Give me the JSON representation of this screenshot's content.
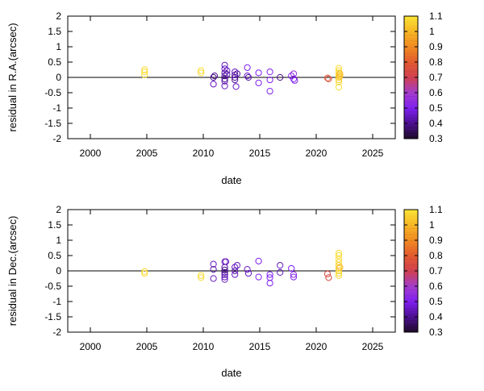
{
  "colorbar": {
    "min": 0.3,
    "max": 1.1,
    "ticks": [
      "0.3",
      "0.4",
      "0.5",
      "0.6",
      "0.7",
      "0.8",
      "0.9",
      "1",
      "1.1"
    ],
    "stops": [
      {
        "v": 0.3,
        "color": "#1e0a28"
      },
      {
        "v": 0.4,
        "color": "#4b0f8f"
      },
      {
        "v": 0.5,
        "color": "#7f1ff0"
      },
      {
        "v": 0.6,
        "color": "#a43ccc"
      },
      {
        "v": 0.7,
        "color": "#d04050"
      },
      {
        "v": 0.8,
        "color": "#e25a30"
      },
      {
        "v": 0.9,
        "color": "#f08a20"
      },
      {
        "v": 1.0,
        "color": "#f7b526"
      },
      {
        "v": 1.1,
        "color": "#fbe434"
      }
    ]
  },
  "chart_data": [
    {
      "type": "scatter",
      "title": "",
      "xlabel": "date",
      "ylabel": "residual in R.A.(arcsec)",
      "xlim": [
        1998,
        2027
      ],
      "ylim": [
        -2,
        2
      ],
      "x_ticks": [
        "2000",
        "2005",
        "2010",
        "2015",
        "2020",
        "2025"
      ],
      "y_ticks": [
        "2",
        "1.5",
        "1",
        "0.5",
        "0",
        "-0.5",
        "-1",
        "-1.5",
        "-2"
      ],
      "zero_line": true,
      "points": [
        {
          "x": 2004.8,
          "y": 0.25,
          "c": 1.08
        },
        {
          "x": 2004.8,
          "y": 0.18,
          "c": 1.08
        },
        {
          "x": 2004.8,
          "y": 0.08,
          "c": 1.08
        },
        {
          "x": 2009.8,
          "y": 0.22,
          "c": 1.08
        },
        {
          "x": 2009.8,
          "y": 0.15,
          "c": 1.08
        },
        {
          "x": 2010.9,
          "y": 0.0,
          "c": 0.4
        },
        {
          "x": 2010.9,
          "y": -0.22,
          "c": 0.45
        },
        {
          "x": 2011.0,
          "y": 0.05,
          "c": 0.4
        },
        {
          "x": 2011.9,
          "y": 0.4,
          "c": 0.45
        },
        {
          "x": 2011.9,
          "y": 0.28,
          "c": 0.45
        },
        {
          "x": 2011.9,
          "y": 0.15,
          "c": 0.42
        },
        {
          "x": 2011.9,
          "y": 0.05,
          "c": 0.4
        },
        {
          "x": 2011.9,
          "y": -0.05,
          "c": 0.4
        },
        {
          "x": 2011.9,
          "y": -0.12,
          "c": 0.42
        },
        {
          "x": 2011.9,
          "y": -0.28,
          "c": 0.45
        },
        {
          "x": 2012.1,
          "y": 0.22,
          "c": 0.45
        },
        {
          "x": 2012.1,
          "y": 0.1,
          "c": 0.42
        },
        {
          "x": 2012.8,
          "y": 0.18,
          "c": 0.45
        },
        {
          "x": 2012.8,
          "y": 0.08,
          "c": 0.42
        },
        {
          "x": 2012.8,
          "y": 0.0,
          "c": 0.4
        },
        {
          "x": 2012.8,
          "y": -0.08,
          "c": 0.42
        },
        {
          "x": 2012.9,
          "y": -0.3,
          "c": 0.45
        },
        {
          "x": 2013.0,
          "y": 0.12,
          "c": 0.42
        },
        {
          "x": 2013.9,
          "y": 0.32,
          "c": 0.5
        },
        {
          "x": 2013.9,
          "y": 0.05,
          "c": 0.45
        },
        {
          "x": 2014.0,
          "y": 0.0,
          "c": 0.42
        },
        {
          "x": 2014.9,
          "y": 0.15,
          "c": 0.5
        },
        {
          "x": 2014.9,
          "y": -0.18,
          "c": 0.5
        },
        {
          "x": 2015.9,
          "y": 0.18,
          "c": 0.5
        },
        {
          "x": 2015.9,
          "y": -0.08,
          "c": 0.5
        },
        {
          "x": 2015.9,
          "y": -0.45,
          "c": 0.5
        },
        {
          "x": 2016.8,
          "y": 0.0,
          "c": 0.4
        },
        {
          "x": 2017.8,
          "y": 0.05,
          "c": 0.5
        },
        {
          "x": 2018.0,
          "y": 0.12,
          "c": 0.55
        },
        {
          "x": 2018.0,
          "y": -0.05,
          "c": 0.5
        },
        {
          "x": 2018.1,
          "y": -0.1,
          "c": 0.5
        },
        {
          "x": 2021.0,
          "y": -0.02,
          "c": 0.8
        },
        {
          "x": 2021.1,
          "y": -0.05,
          "c": 0.75
        },
        {
          "x": 2022.0,
          "y": 0.3,
          "c": 1.08
        },
        {
          "x": 2022.0,
          "y": 0.22,
          "c": 1.08
        },
        {
          "x": 2022.0,
          "y": 0.15,
          "c": 1.08
        },
        {
          "x": 2022.0,
          "y": 0.08,
          "c": 1.08
        },
        {
          "x": 2022.0,
          "y": 0.0,
          "c": 1.05
        },
        {
          "x": 2022.0,
          "y": -0.08,
          "c": 1.05
        },
        {
          "x": 2022.0,
          "y": -0.15,
          "c": 1.08
        },
        {
          "x": 2022.0,
          "y": -0.32,
          "c": 1.08
        },
        {
          "x": 2022.1,
          "y": 0.12,
          "c": 1.0
        },
        {
          "x": 2022.1,
          "y": 0.04,
          "c": 1.0
        }
      ]
    },
    {
      "type": "scatter",
      "title": "",
      "xlabel": "date",
      "ylabel": "residual in Dec.(arcsec)",
      "xlim": [
        1998,
        2027
      ],
      "ylim": [
        -2,
        2
      ],
      "x_ticks": [
        "2000",
        "2005",
        "2010",
        "2015",
        "2020",
        "2025"
      ],
      "y_ticks": [
        "2",
        "1.5",
        "1",
        "0.5",
        "0",
        "-0.5",
        "-1",
        "-1.5",
        "-2"
      ],
      "zero_line": true,
      "points": [
        {
          "x": 2004.8,
          "y": -0.02,
          "c": 1.08
        },
        {
          "x": 2004.8,
          "y": -0.08,
          "c": 1.08
        },
        {
          "x": 2009.8,
          "y": -0.15,
          "c": 1.08
        },
        {
          "x": 2009.8,
          "y": -0.22,
          "c": 1.08
        },
        {
          "x": 2010.9,
          "y": 0.22,
          "c": 0.45
        },
        {
          "x": 2010.9,
          "y": 0.05,
          "c": 0.42
        },
        {
          "x": 2010.9,
          "y": -0.25,
          "c": 0.45
        },
        {
          "x": 2011.9,
          "y": 0.3,
          "c": 0.45
        },
        {
          "x": 2011.9,
          "y": 0.12,
          "c": 0.42
        },
        {
          "x": 2011.9,
          "y": 0.03,
          "c": 0.4
        },
        {
          "x": 2011.9,
          "y": -0.05,
          "c": 0.4
        },
        {
          "x": 2011.9,
          "y": -0.12,
          "c": 0.42
        },
        {
          "x": 2011.9,
          "y": -0.2,
          "c": 0.45
        },
        {
          "x": 2011.9,
          "y": -0.28,
          "c": 0.45
        },
        {
          "x": 2012.0,
          "y": 0.3,
          "c": 0.45
        },
        {
          "x": 2012.8,
          "y": 0.12,
          "c": 0.45
        },
        {
          "x": 2012.8,
          "y": 0.0,
          "c": 0.42
        },
        {
          "x": 2012.8,
          "y": -0.12,
          "c": 0.45
        },
        {
          "x": 2013.0,
          "y": 0.18,
          "c": 0.45
        },
        {
          "x": 2013.9,
          "y": 0.05,
          "c": 0.45
        },
        {
          "x": 2014.0,
          "y": -0.08,
          "c": 0.45
        },
        {
          "x": 2014.9,
          "y": 0.32,
          "c": 0.5
        },
        {
          "x": 2014.9,
          "y": -0.2,
          "c": 0.5
        },
        {
          "x": 2015.9,
          "y": -0.12,
          "c": 0.5
        },
        {
          "x": 2015.9,
          "y": -0.22,
          "c": 0.5
        },
        {
          "x": 2015.9,
          "y": -0.4,
          "c": 0.5
        },
        {
          "x": 2016.8,
          "y": 0.18,
          "c": 0.45
        },
        {
          "x": 2016.8,
          "y": -0.05,
          "c": 0.45
        },
        {
          "x": 2017.8,
          "y": 0.08,
          "c": 0.5
        },
        {
          "x": 2018.0,
          "y": -0.12,
          "c": 0.55
        },
        {
          "x": 2018.0,
          "y": -0.2,
          "c": 0.5
        },
        {
          "x": 2021.0,
          "y": -0.1,
          "c": 0.75
        },
        {
          "x": 2021.1,
          "y": -0.22,
          "c": 0.75
        },
        {
          "x": 2022.0,
          "y": 0.58,
          "c": 1.08
        },
        {
          "x": 2022.0,
          "y": 0.5,
          "c": 1.08
        },
        {
          "x": 2022.0,
          "y": 0.38,
          "c": 1.08
        },
        {
          "x": 2022.0,
          "y": 0.28,
          "c": 1.08
        },
        {
          "x": 2022.0,
          "y": 0.18,
          "c": 1.05
        },
        {
          "x": 2022.0,
          "y": 0.08,
          "c": 1.05
        },
        {
          "x": 2022.0,
          "y": 0.0,
          "c": 1.05
        },
        {
          "x": 2022.0,
          "y": -0.08,
          "c": 1.08
        },
        {
          "x": 2022.0,
          "y": -0.15,
          "c": 1.08
        },
        {
          "x": 2022.1,
          "y": 0.12,
          "c": 1.0
        }
      ]
    }
  ]
}
